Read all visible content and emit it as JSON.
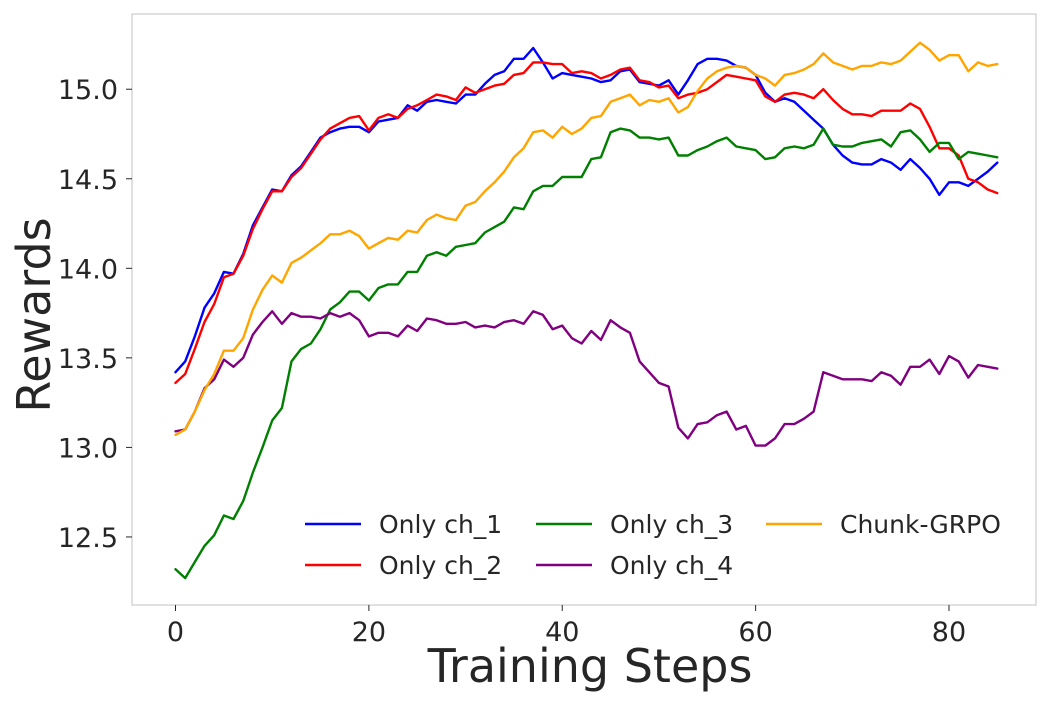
{
  "chart_data": {
    "type": "line",
    "title": "",
    "xlabel": "Training Steps",
    "ylabel": "Rewards",
    "xlim": [
      -4.5,
      89
    ],
    "ylim": [
      12.12,
      15.42
    ],
    "xticks": [
      0,
      20,
      40,
      60,
      80
    ],
    "yticks": [
      12.5,
      13.0,
      13.5,
      14.0,
      14.5,
      15.0
    ],
    "ytick_labels": [
      "12.5",
      "13.0",
      "13.5",
      "14.0",
      "14.5",
      "15.0"
    ],
    "grid": false,
    "legend_position": "bottom-right",
    "legend_columns": 3,
    "series": [
      {
        "name": "Only ch_1",
        "color": "#0000ff",
        "x": [
          0,
          1,
          2,
          3,
          4,
          5,
          6,
          7,
          8,
          9,
          10,
          11,
          12,
          13,
          14,
          15,
          16,
          17,
          18,
          19,
          20,
          21,
          22,
          23,
          24,
          25,
          26,
          27,
          28,
          29,
          30,
          31,
          32,
          33,
          34,
          35,
          36,
          37,
          38,
          39,
          40,
          41,
          42,
          43,
          44,
          45,
          46,
          47,
          48,
          49,
          50,
          51,
          52,
          53,
          54,
          55,
          56,
          57,
          58,
          59,
          60,
          61,
          62,
          63,
          64,
          65,
          66,
          67,
          68,
          69,
          70,
          71,
          72,
          73,
          74,
          75,
          76,
          77,
          78,
          79,
          80,
          81,
          82,
          83,
          84,
          85
        ],
        "values": [
          13.42,
          13.48,
          13.62,
          13.78,
          13.86,
          13.98,
          13.97,
          14.08,
          14.24,
          14.34,
          14.44,
          14.43,
          14.52,
          14.57,
          14.65,
          14.73,
          14.76,
          14.78,
          14.79,
          14.79,
          14.76,
          14.82,
          14.83,
          14.84,
          14.91,
          14.88,
          14.93,
          14.94,
          14.93,
          14.92,
          14.97,
          14.97,
          15.03,
          15.08,
          15.1,
          15.17,
          15.17,
          15.23,
          15.15,
          15.06,
          15.09,
          15.08,
          15.07,
          15.06,
          15.04,
          15.05,
          15.1,
          15.11,
          15.04,
          15.03,
          15.02,
          15.05,
          14.97,
          15.05,
          15.14,
          15.17,
          15.17,
          15.16,
          15.13,
          15.12,
          15.08,
          14.98,
          14.93,
          14.95,
          14.93,
          14.88,
          14.83,
          14.78,
          14.69,
          14.63,
          14.59,
          14.58,
          14.58,
          14.61,
          14.59,
          14.55,
          14.61,
          14.56,
          14.5,
          14.41,
          14.48,
          14.48,
          14.46,
          14.5,
          14.54,
          14.59
        ]
      },
      {
        "name": "Only ch_2",
        "color": "#ff0000",
        "x": [
          0,
          1,
          2,
          3,
          4,
          5,
          6,
          7,
          8,
          9,
          10,
          11,
          12,
          13,
          14,
          15,
          16,
          17,
          18,
          19,
          20,
          21,
          22,
          23,
          24,
          25,
          26,
          27,
          28,
          29,
          30,
          31,
          32,
          33,
          34,
          35,
          36,
          37,
          38,
          39,
          40,
          41,
          42,
          43,
          44,
          45,
          46,
          47,
          48,
          49,
          50,
          51,
          52,
          53,
          54,
          55,
          56,
          57,
          58,
          59,
          60,
          61,
          62,
          63,
          64,
          65,
          66,
          67,
          68,
          69,
          70,
          71,
          72,
          73,
          74,
          75,
          76,
          77,
          78,
          79,
          80,
          81,
          82,
          83,
          84,
          85
        ],
        "values": [
          13.36,
          13.41,
          13.55,
          13.7,
          13.8,
          13.95,
          13.97,
          14.07,
          14.22,
          14.33,
          14.43,
          14.43,
          14.51,
          14.56,
          14.64,
          14.72,
          14.78,
          14.81,
          14.84,
          14.85,
          14.77,
          14.84,
          14.86,
          14.84,
          14.89,
          14.91,
          14.94,
          14.97,
          14.96,
          14.94,
          15.01,
          14.98,
          15.0,
          15.02,
          15.03,
          15.08,
          15.09,
          15.15,
          15.15,
          15.14,
          15.14,
          15.09,
          15.1,
          15.09,
          15.06,
          15.08,
          15.11,
          15.12,
          15.05,
          15.04,
          15.01,
          15.02,
          14.95,
          14.97,
          14.98,
          15.0,
          15.04,
          15.08,
          15.07,
          15.06,
          15.05,
          14.96,
          14.93,
          14.97,
          14.98,
          14.97,
          14.95,
          15.0,
          14.94,
          14.89,
          14.86,
          14.86,
          14.85,
          14.88,
          14.88,
          14.88,
          14.92,
          14.89,
          14.79,
          14.67,
          14.67,
          14.63,
          14.5,
          14.48,
          14.44,
          14.42
        ]
      },
      {
        "name": "Only ch_3",
        "color": "#008000",
        "x": [
          0,
          1,
          2,
          3,
          4,
          5,
          6,
          7,
          8,
          9,
          10,
          11,
          12,
          13,
          14,
          15,
          16,
          17,
          18,
          19,
          20,
          21,
          22,
          23,
          24,
          25,
          26,
          27,
          28,
          29,
          30,
          31,
          32,
          33,
          34,
          35,
          36,
          37,
          38,
          39,
          40,
          41,
          42,
          43,
          44,
          45,
          46,
          47,
          48,
          49,
          50,
          51,
          52,
          53,
          54,
          55,
          56,
          57,
          58,
          59,
          60,
          61,
          62,
          63,
          64,
          65,
          66,
          67,
          68,
          69,
          70,
          71,
          72,
          73,
          74,
          75,
          76,
          77,
          78,
          79,
          80,
          81,
          82,
          83,
          84,
          85
        ],
        "values": [
          12.32,
          12.27,
          12.36,
          12.45,
          12.51,
          12.62,
          12.6,
          12.7,
          12.86,
          13.0,
          13.15,
          13.22,
          13.48,
          13.55,
          13.58,
          13.66,
          13.77,
          13.81,
          13.87,
          13.87,
          13.82,
          13.89,
          13.91,
          13.91,
          13.98,
          13.98,
          14.07,
          14.09,
          14.07,
          14.12,
          14.13,
          14.14,
          14.2,
          14.23,
          14.26,
          14.34,
          14.33,
          14.43,
          14.46,
          14.46,
          14.51,
          14.51,
          14.51,
          14.61,
          14.62,
          14.76,
          14.78,
          14.77,
          14.73,
          14.73,
          14.72,
          14.73,
          14.63,
          14.63,
          14.66,
          14.68,
          14.71,
          14.73,
          14.68,
          14.67,
          14.66,
          14.61,
          14.62,
          14.67,
          14.68,
          14.67,
          14.69,
          14.78,
          14.69,
          14.68,
          14.68,
          14.7,
          14.71,
          14.72,
          14.68,
          14.76,
          14.77,
          14.72,
          14.65,
          14.7,
          14.7,
          14.61,
          14.65,
          14.64,
          14.63,
          14.62
        ]
      },
      {
        "name": "Only ch_4",
        "color": "#800080",
        "x": [
          0,
          1,
          2,
          3,
          4,
          5,
          6,
          7,
          8,
          9,
          10,
          11,
          12,
          13,
          14,
          15,
          16,
          17,
          18,
          19,
          20,
          21,
          22,
          23,
          24,
          25,
          26,
          27,
          28,
          29,
          30,
          31,
          32,
          33,
          34,
          35,
          36,
          37,
          38,
          39,
          40,
          41,
          42,
          43,
          44,
          45,
          46,
          47,
          48,
          49,
          50,
          51,
          52,
          53,
          54,
          55,
          56,
          57,
          58,
          59,
          60,
          61,
          62,
          63,
          64,
          65,
          66,
          67,
          68,
          69,
          70,
          71,
          72,
          73,
          74,
          75,
          76,
          77,
          78,
          79,
          80,
          81,
          82,
          83,
          84,
          85
        ],
        "values": [
          13.09,
          13.1,
          13.2,
          13.33,
          13.38,
          13.49,
          13.45,
          13.5,
          13.63,
          13.7,
          13.76,
          13.69,
          13.75,
          13.73,
          13.73,
          13.72,
          13.75,
          13.73,
          13.75,
          13.71,
          13.62,
          13.64,
          13.64,
          13.62,
          13.68,
          13.65,
          13.72,
          13.71,
          13.69,
          13.69,
          13.7,
          13.67,
          13.68,
          13.67,
          13.7,
          13.71,
          13.69,
          13.76,
          13.74,
          13.66,
          13.68,
          13.61,
          13.58,
          13.65,
          13.6,
          13.71,
          13.67,
          13.64,
          13.48,
          13.42,
          13.36,
          13.34,
          13.11,
          13.05,
          13.13,
          13.14,
          13.18,
          13.2,
          13.1,
          13.12,
          13.01,
          13.01,
          13.05,
          13.13,
          13.13,
          13.16,
          13.2,
          13.42,
          13.4,
          13.38,
          13.38,
          13.38,
          13.37,
          13.42,
          13.4,
          13.35,
          13.45,
          13.45,
          13.49,
          13.41,
          13.51,
          13.48,
          13.39,
          13.46,
          13.45,
          13.44
        ]
      },
      {
        "name": "Chunk-GRPO",
        "color": "#ffa500",
        "x": [
          0,
          1,
          2,
          3,
          4,
          5,
          6,
          7,
          8,
          9,
          10,
          11,
          12,
          13,
          14,
          15,
          16,
          17,
          18,
          19,
          20,
          21,
          22,
          23,
          24,
          25,
          26,
          27,
          28,
          29,
          30,
          31,
          32,
          33,
          34,
          35,
          36,
          37,
          38,
          39,
          40,
          41,
          42,
          43,
          44,
          45,
          46,
          47,
          48,
          49,
          50,
          51,
          52,
          53,
          54,
          55,
          56,
          57,
          58,
          59,
          60,
          61,
          62,
          63,
          64,
          65,
          66,
          67,
          68,
          69,
          70,
          71,
          72,
          73,
          74,
          75,
          76,
          77,
          78,
          79,
          80,
          81,
          82,
          83,
          84,
          85
        ],
        "values": [
          13.07,
          13.1,
          13.2,
          13.32,
          13.41,
          13.54,
          13.54,
          13.61,
          13.77,
          13.88,
          13.96,
          13.92,
          14.03,
          14.06,
          14.1,
          14.14,
          14.19,
          14.19,
          14.21,
          14.18,
          14.11,
          14.14,
          14.17,
          14.16,
          14.21,
          14.2,
          14.27,
          14.3,
          14.28,
          14.27,
          14.35,
          14.37,
          14.43,
          14.48,
          14.54,
          14.62,
          14.67,
          14.76,
          14.77,
          14.73,
          14.79,
          14.75,
          14.78,
          14.84,
          14.85,
          14.93,
          14.95,
          14.97,
          14.91,
          14.94,
          14.93,
          14.95,
          14.87,
          14.9,
          14.99,
          15.06,
          15.1,
          15.12,
          15.13,
          15.12,
          15.08,
          15.06,
          15.02,
          15.08,
          15.09,
          15.11,
          15.14,
          15.2,
          15.15,
          15.13,
          15.11,
          15.13,
          15.13,
          15.15,
          15.14,
          15.16,
          15.21,
          15.26,
          15.22,
          15.16,
          15.19,
          15.19,
          15.1,
          15.15,
          15.13,
          15.14
        ]
      }
    ]
  }
}
